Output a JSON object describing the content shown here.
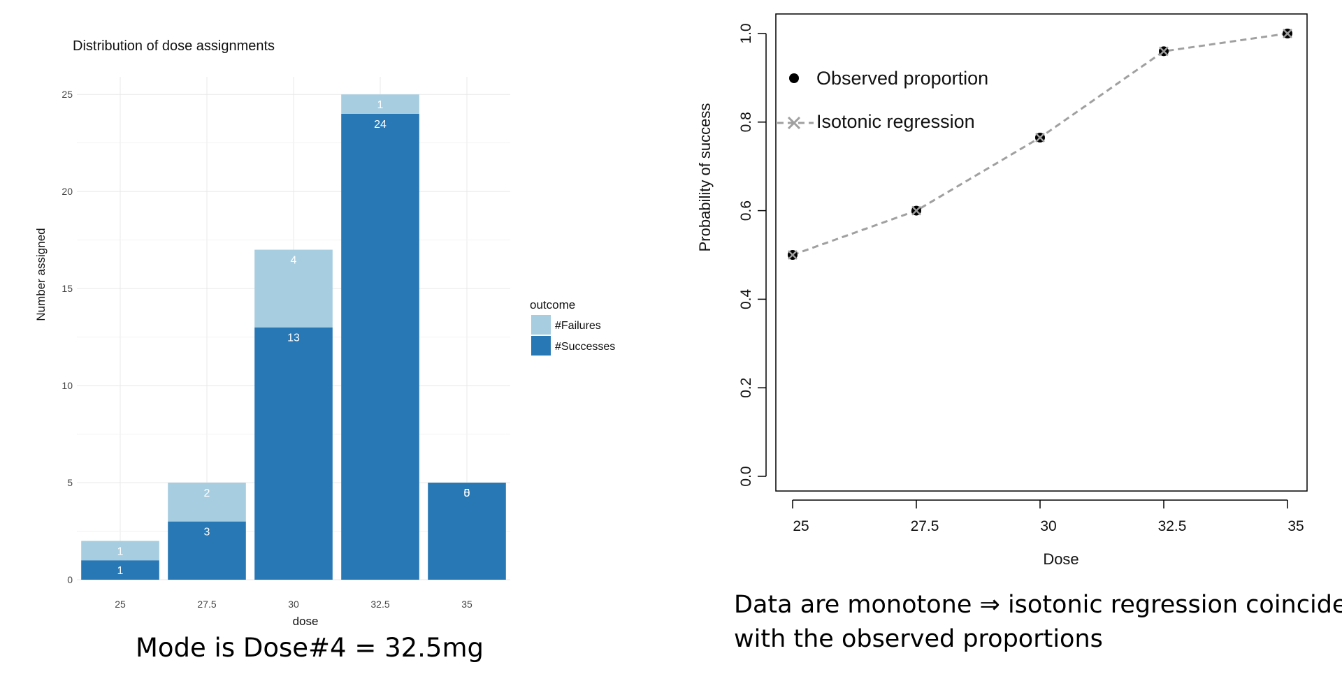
{
  "chart_data": [
    {
      "type": "bar",
      "stacked": true,
      "title": "Distribution of dose assignments",
      "xlabel": "dose",
      "ylabel": "Number assigned",
      "categories": [
        "25",
        "27.5",
        "30",
        "32.5",
        "35"
      ],
      "ylim": [
        0,
        25
      ],
      "yticks": [
        "0",
        "5",
        "10",
        "15",
        "20",
        "25"
      ],
      "grid": true,
      "legend_position": "right",
      "legend_title": "outcome",
      "series": [
        {
          "name": "#Successes",
          "values": [
            1,
            3,
            13,
            24,
            5
          ],
          "labels": [
            "1",
            "3",
            "13",
            "24",
            "5"
          ],
          "color": "#2878b5"
        },
        {
          "name": "#Failures",
          "values": [
            1,
            2,
            4,
            1,
            0
          ],
          "labels": [
            "1",
            "2",
            "4",
            "1",
            "0"
          ],
          "color": "#a6cde0"
        }
      ],
      "caption": "Mode is Dose#4 = 32.5mg"
    },
    {
      "type": "line",
      "xlabel": "Dose",
      "ylabel": "Probability of success",
      "x": [
        25,
        27.5,
        30,
        32.5,
        35
      ],
      "xticks": [
        "25",
        "27.5",
        "30",
        "32.5",
        "35"
      ],
      "ylim": [
        0,
        1
      ],
      "yticks": [
        "0.0",
        "0.2",
        "0.4",
        "0.6",
        "0.8",
        "1.0"
      ],
      "grid": false,
      "legend_position": "top-left",
      "series": [
        {
          "name": "Observed proportion",
          "values": [
            0.5,
            0.6,
            0.765,
            0.96,
            1.0
          ],
          "marker": "filled-circle",
          "color": "#000000"
        },
        {
          "name": "Isotonic regression",
          "values": [
            0.5,
            0.6,
            0.765,
            0.96,
            1.0
          ],
          "marker": "x",
          "line": "dashed",
          "color": "#a0a0a0"
        }
      ],
      "caption_lines": [
        "Data are monotone ⇒ isotonic regression coincides",
        "with the observed proportions"
      ]
    }
  ]
}
